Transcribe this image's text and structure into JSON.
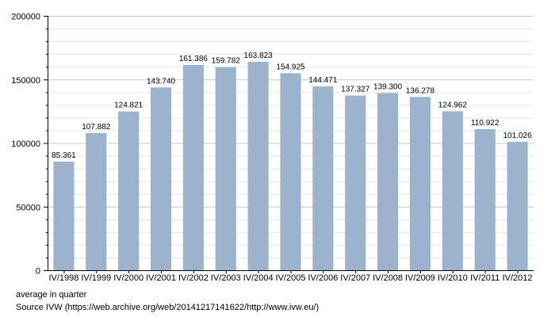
{
  "chart_data": {
    "type": "bar",
    "categories": [
      "IV/1998",
      "IV/1999",
      "IV/2000",
      "IV/2001",
      "IV/2002",
      "IV/2003",
      "IV/2004",
      "IV/2005",
      "IV/2006",
      "IV/2007",
      "IV/2008",
      "IV/2009",
      "IV/2010",
      "IV/2011",
      "IV/2012"
    ],
    "values": [
      85361,
      107882,
      124821,
      143740,
      161386,
      159782,
      163823,
      154925,
      144471,
      137327,
      139300,
      136278,
      124962,
      110922,
      101026
    ],
    "data_labels": [
      "85.361",
      "107.882",
      "124.821",
      "143.740",
      "161.386",
      "159.782",
      "163.823",
      "154.925",
      "144.471",
      "137.327",
      "139.300",
      "136.278",
      "124.962",
      "110.922",
      "101.026"
    ],
    "ylim": [
      0,
      200000
    ],
    "y_ticks": [
      0,
      50000,
      100000,
      150000,
      200000
    ],
    "y_tick_labels": [
      "0",
      "50000",
      "100000",
      "150000",
      "200000"
    ],
    "y_minor_step": 10000,
    "grid": true,
    "title": "",
    "xlabel": "",
    "ylabel": "",
    "bar_color": "#9bb3cc",
    "grid_color": "#c8c8c8",
    "minor_grid_color": "#e6e6e6",
    "axis_color": "#000000"
  },
  "notes": {
    "line1": "average in quarter",
    "line2": "Source IVW (https://web.archive.org/web/20141217141622/http://www.ivw.eu/)"
  }
}
